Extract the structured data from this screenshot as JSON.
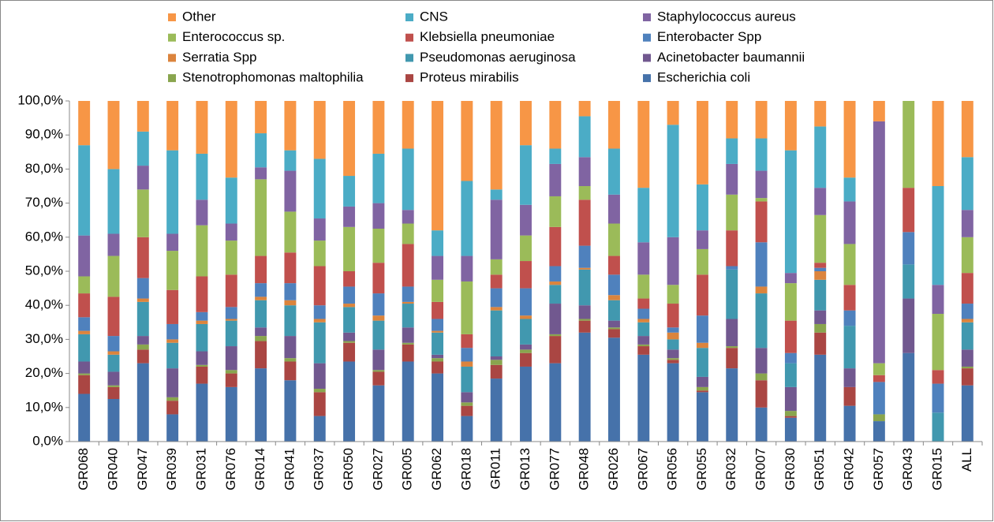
{
  "chart_data": {
    "type": "stacked_bar",
    "categories": [
      "GR068",
      "GR040",
      "GR047",
      "GR039",
      "GR031",
      "GR076",
      "GR014",
      "GR041",
      "GR037",
      "GR050",
      "GR027",
      "GR005",
      "GR062",
      "GR018",
      "GR011",
      "GR013",
      "GR077",
      "GR048",
      "GR026",
      "GR067",
      "GR056",
      "GR055",
      "GR032",
      "GR007",
      "GR030",
      "GR051",
      "GR042",
      "GR057",
      "GR043",
      "GR015",
      "ALL"
    ],
    "series": [
      {
        "name": "Escherichia coli",
        "color": "#4672aa",
        "values": [
          14,
          12.5,
          23,
          8,
          17,
          16,
          21.5,
          18,
          7.5,
          23.5,
          16.5,
          23.5,
          20,
          7.5,
          18.5,
          22,
          23,
          32,
          30.5,
          25.5,
          23,
          14.5,
          21.5,
          10,
          7,
          25.5,
          10.5,
          6,
          26,
          0,
          16.5
        ]
      },
      {
        "name": "Proteus mirabilis",
        "color": "#aa4643",
        "values": [
          5.5,
          3.5,
          4,
          4,
          5,
          4,
          8,
          5.5,
          7,
          5.5,
          4,
          5,
          3.5,
          3,
          4,
          4,
          8,
          3.5,
          2.5,
          2.5,
          1,
          0.5,
          6,
          8,
          0.5,
          6.5,
          5.5,
          0,
          0,
          0,
          5
        ]
      },
      {
        "name": "Stenotrophomonas maltophilia",
        "color": "#89a54e",
        "values": [
          0.5,
          0.5,
          1.5,
          1,
          0.5,
          1,
          1.5,
          1,
          1,
          0.5,
          0.5,
          0.5,
          1,
          1,
          1.5,
          1,
          0.5,
          0.5,
          0.5,
          0.5,
          0.5,
          1,
          0.5,
          2,
          1.5,
          2.5,
          0,
          2,
          0,
          0,
          0.5
        ]
      },
      {
        "name": "Acinetobacter baumannii",
        "color": "#71588f",
        "values": [
          3.5,
          4,
          2.5,
          8.5,
          4,
          7,
          2.5,
          6.5,
          7.5,
          2.5,
          6,
          4.5,
          1,
          3,
          1,
          1.5,
          9,
          4,
          2,
          2.5,
          2.5,
          3,
          8,
          7.5,
          7,
          4,
          5.5,
          0,
          16,
          0,
          5
        ]
      },
      {
        "name": "Pseudomonas aeruginosa",
        "color": "#4198af",
        "values": [
          8,
          5,
          10,
          7.5,
          8,
          7.5,
          8,
          9,
          12,
          7.5,
          8.5,
          7,
          6.5,
          7.5,
          13.5,
          7.5,
          5.5,
          10.5,
          6,
          4,
          3,
          8.5,
          14.5,
          16,
          7,
          9,
          12.5,
          0,
          10,
          8.5,
          8
        ]
      },
      {
        "name": "Serratia Spp",
        "color": "#db843d",
        "values": [
          1,
          1,
          1,
          1,
          1,
          0.5,
          1,
          1.5,
          1,
          1,
          1.5,
          0.5,
          0.5,
          1.5,
          1,
          1,
          1,
          0.5,
          1.5,
          1,
          2,
          1.5,
          0,
          2,
          0,
          2.5,
          0,
          0,
          0,
          0,
          1
        ]
      },
      {
        "name": "Enterobacter Spp",
        "color": "#4f81bd",
        "values": [
          4,
          4.5,
          6,
          4.5,
          2.5,
          3.5,
          4,
          5,
          4,
          5,
          6.5,
          4.5,
          3.5,
          4,
          5.5,
          8,
          4.5,
          6.5,
          6,
          3,
          1.5,
          8,
          1,
          13,
          3,
          1,
          4.5,
          9.5,
          9.5,
          8.5,
          4.5
        ]
      },
      {
        "name": "Klebsiella pneumoniae",
        "color": "#c0504d",
        "values": [
          7,
          11.5,
          12,
          10,
          10.5,
          9.5,
          8,
          9,
          11.5,
          4.5,
          9,
          12.5,
          5,
          4,
          4,
          8,
          11.5,
          13.5,
          5.5,
          3,
          7,
          12,
          10.5,
          12,
          9.5,
          1.5,
          7.5,
          2,
          13,
          4,
          9
        ]
      },
      {
        "name": "Enterococcus sp.",
        "color": "#9bbb59",
        "values": [
          5,
          12,
          14,
          11.5,
          15,
          10,
          22.5,
          12,
          7.5,
          13,
          10,
          6,
          6.5,
          15.5,
          4.5,
          7.5,
          9,
          4,
          9.5,
          7,
          5.5,
          7.5,
          10.5,
          1,
          11,
          14,
          12,
          3.5,
          25.5,
          16.5,
          10.5
        ]
      },
      {
        "name": "Staphylococcus aureus",
        "color": "#8064a2",
        "values": [
          12,
          6.5,
          7,
          5,
          7.5,
          5,
          3.5,
          12,
          6.5,
          6,
          7.5,
          4,
          7,
          7.5,
          17.5,
          9,
          9.5,
          8.5,
          8.5,
          9.5,
          14,
          5.5,
          9,
          8,
          3,
          8,
          12.5,
          71,
          0,
          8.5,
          8
        ]
      },
      {
        "name": "CNS",
        "color": "#4bacc6",
        "values": [
          26.5,
          19,
          10,
          24.5,
          13.5,
          13.5,
          10,
          6,
          17.5,
          9,
          14.5,
          18,
          7.5,
          22,
          3,
          17.5,
          4.5,
          12,
          13.5,
          16,
          33,
          13.5,
          7.5,
          9.5,
          36,
          18,
          7,
          0,
          0,
          29,
          15.5
        ]
      },
      {
        "name": "Other",
        "color": "#f79646",
        "values": [
          13,
          20,
          9,
          14.5,
          15.5,
          22.5,
          9.5,
          14.5,
          17,
          22,
          15.5,
          14,
          38,
          23.5,
          26,
          13,
          14,
          4.5,
          14,
          25.5,
          7,
          24.5,
          11,
          11,
          14.5,
          7.5,
          22.5,
          6,
          0,
          25,
          16.5
        ]
      }
    ],
    "ylim": [
      0,
      100
    ],
    "yticks": [
      {
        "value": 0,
        "label": "0,0%"
      },
      {
        "value": 10,
        "label": "10,0%"
      },
      {
        "value": 20,
        "label": "20,0%"
      },
      {
        "value": 30,
        "label": "30,0%"
      },
      {
        "value": 40,
        "label": "40,0%"
      },
      {
        "value": 50,
        "label": "50,0%"
      },
      {
        "value": 60,
        "label": "60,0%"
      },
      {
        "value": 70,
        "label": "70,0%"
      },
      {
        "value": 80,
        "label": "80,0%"
      },
      {
        "value": 90,
        "label": "90,0%"
      },
      {
        "value": 100,
        "label": "100,0%"
      }
    ],
    "legend": "top",
    "grid": false
  }
}
